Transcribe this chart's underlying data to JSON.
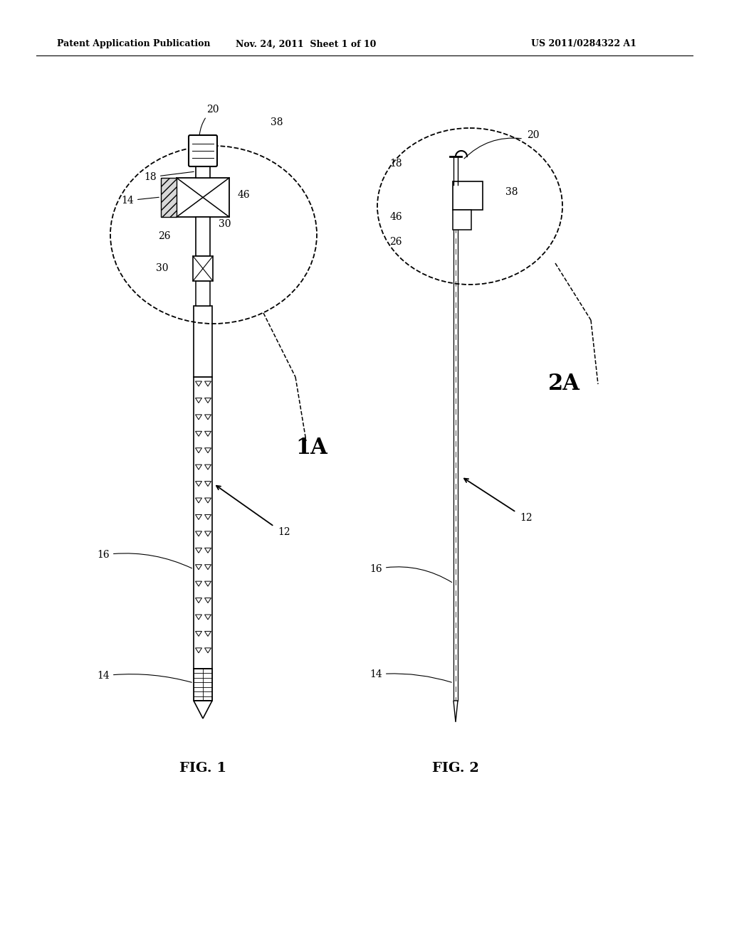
{
  "bg_color": "#ffffff",
  "header_text": "Patent Application Publication",
  "header_date": "Nov. 24, 2011  Sheet 1 of 10",
  "header_patent": "US 2011/0284322 A1",
  "fig1_label": "FIG. 1",
  "fig2_label": "FIG. 2",
  "label_1A": "1A",
  "label_2A": "2A"
}
